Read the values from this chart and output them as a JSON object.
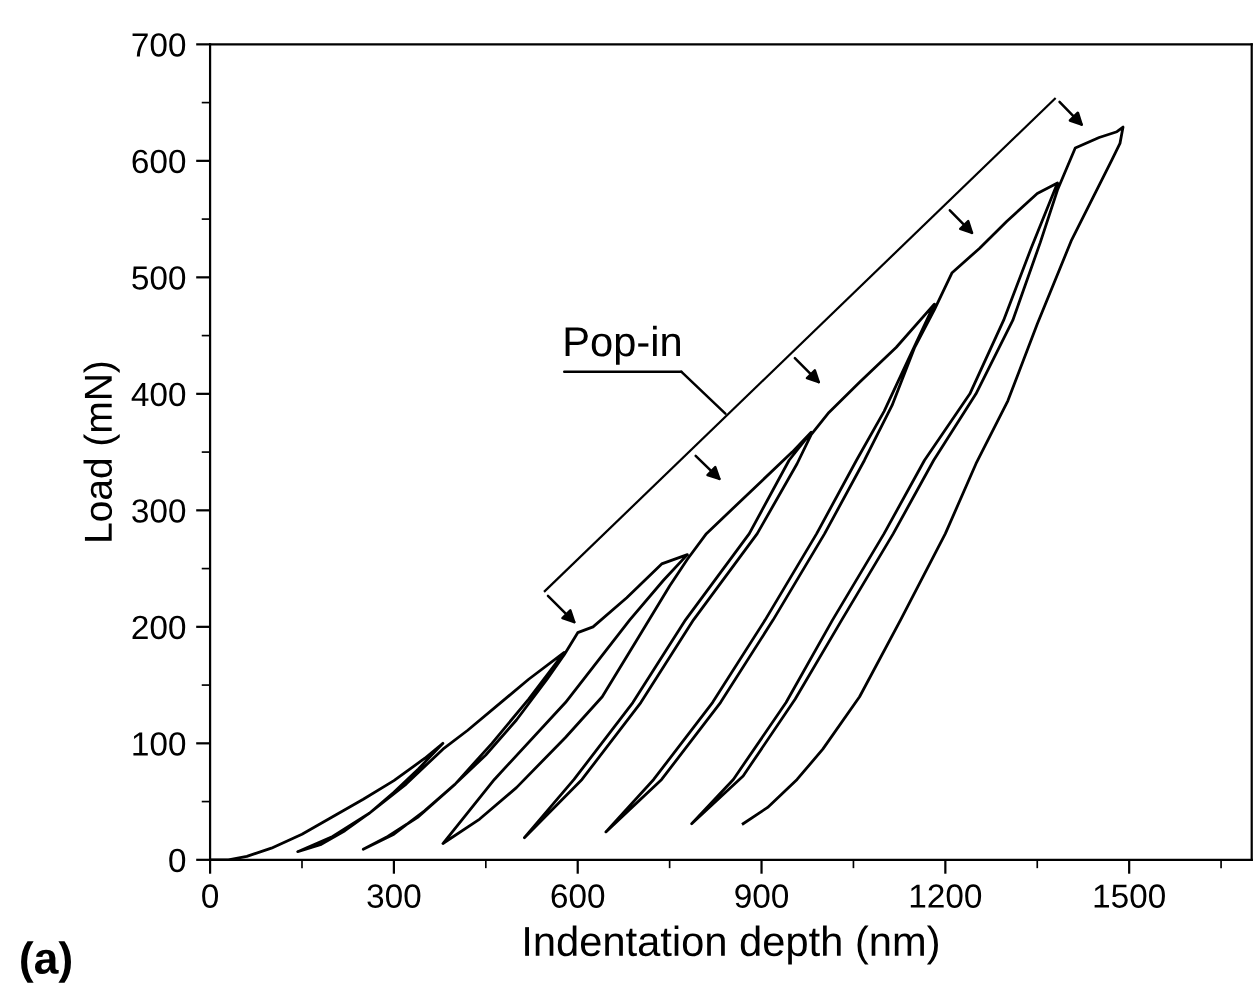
{
  "chart_data": {
    "type": "line",
    "xlabel": "Indentation depth (nm)",
    "ylabel": "Load (mN)",
    "annotations": [
      "Pop-in",
      "(a)"
    ],
    "xlim": [
      0,
      1700
    ],
    "ylim": [
      0,
      700
    ],
    "xticks": [
      0,
      300,
      600,
      900,
      1200,
      1500
    ],
    "yticks": [
      0,
      100,
      200,
      300,
      400,
      500,
      600,
      700
    ],
    "marker": "none",
    "line_style": "solid",
    "series": [
      {
        "color": "#000000",
        "x": [
          0,
          30,
          60,
          100,
          150,
          200,
          250,
          300,
          350,
          380,
          340,
          300,
          260,
          220,
          180,
          143,
          200,
          260,
          320,
          380,
          420,
          470,
          520,
          578,
          520,
          460,
          400,
          340,
          290,
          250,
          300,
          350,
          400,
          450,
          500,
          550,
          578,
          600,
          625,
          680,
          737,
          779,
          740,
          685,
          580,
          464,
          380,
          440,
          500,
          580,
          640,
          698,
          750,
          779,
          810,
          854,
          900,
          950,
          981,
          945,
          880,
          776,
          690,
          594,
          513,
          607,
          703,
          789,
          893,
          958,
          981,
          1010,
          1060,
          1120,
          1182,
          1140,
          1100,
          1055,
          990,
          906,
          820,
          724,
          646,
          737,
          833,
          919,
          1003,
          1068,
          1113,
          1150,
          1182,
          1211,
          1256,
          1300,
          1350,
          1383,
          1340,
          1295,
          1240,
          1166,
          1100,
          1016,
          940,
          854,
          786,
          870,
          955,
          1031,
          1115,
          1181,
          1250,
          1310,
          1355,
          1383,
          1412,
          1451,
          1480,
          1490,
          1485,
          1471,
          1406,
          1350,
          1302,
          1250,
          1200,
          1127,
          1060,
          1000,
          958,
          910,
          870
        ],
        "values": [
          0,
          0,
          3,
          10,
          22,
          37,
          52,
          68,
          87,
          100,
          78,
          58,
          40,
          25,
          13,
          7,
          20,
          40,
          65,
          95,
          111,
          133,
          155,
          178,
          138,
          100,
          65,
          37,
          20,
          9,
          22,
          42,
          65,
          90,
          120,
          155,
          176,
          195,
          200,
          225,
          254,
          262,
          240,
          206,
          135,
          69,
          14,
          35,
          62,
          105,
          140,
          190,
          235,
          258,
          280,
          302,
          325,
          350,
          367,
          343,
          280,
          206,
          135,
          69,
          19,
          69,
          135,
          206,
          280,
          340,
          365,
          384,
          410,
          440,
          477,
          430,
          385,
          343,
          280,
          206,
          135,
          69,
          24,
          69,
          135,
          206,
          280,
          343,
          390,
          440,
          472,
          504,
          525,
          548,
          572,
          581,
          525,
          463,
          400,
          343,
          280,
          206,
          135,
          69,
          31,
          72,
          138,
          206,
          280,
          343,
          400,
          463,
          530,
          575,
          611,
          620,
          625,
          629,
          615,
          600,
          532,
          460,
          394,
          340,
          280,
          206,
          140,
          95,
          69,
          45,
          31
        ]
      }
    ]
  }
}
